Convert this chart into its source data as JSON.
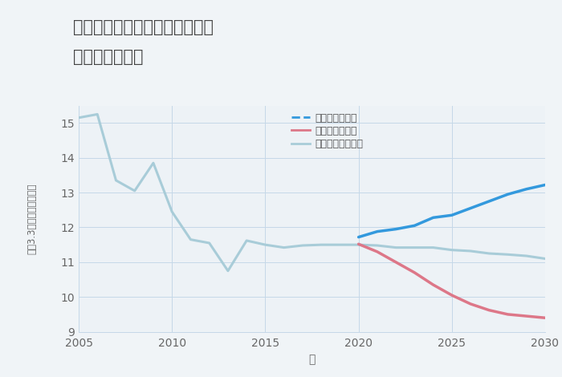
{
  "title_line1": "三重県桑名市長島町十日外面の",
  "title_line2": "土地の価格推移",
  "xlabel": "年",
  "ylabel_chars": [
    "坪",
    "（",
    "3",
    ".",
    "3",
    "㎡",
    "）",
    "単",
    "価",
    "（",
    "万",
    "円",
    "）"
  ],
  "ylim": [
    9,
    15.5
  ],
  "xlim": [
    2005,
    2030
  ],
  "background_color": "#f0f4f7",
  "plot_background": "#edf2f6",
  "grid_color": "#c5d8e8",
  "normal_scenario": {
    "label": "ノーマルシナリオ",
    "color": "#a8ccd8",
    "linewidth": 2.2,
    "x": [
      2005,
      2006,
      2007,
      2008,
      2009,
      2010,
      2011,
      2012,
      2013,
      2014,
      2015,
      2016,
      2017,
      2018,
      2019,
      2020,
      2021,
      2022,
      2023,
      2024,
      2025,
      2026,
      2027,
      2028,
      2029,
      2030
    ],
    "y": [
      15.15,
      15.25,
      13.35,
      13.05,
      13.85,
      12.45,
      11.65,
      11.55,
      10.75,
      11.62,
      11.5,
      11.42,
      11.48,
      11.5,
      11.5,
      11.5,
      11.48,
      11.42,
      11.42,
      11.42,
      11.35,
      11.32,
      11.25,
      11.22,
      11.18,
      11.1
    ]
  },
  "good_scenario": {
    "label": "グッドシナリオ",
    "color": "#3399dd",
    "linewidth": 2.5,
    "x": [
      2020,
      2021,
      2022,
      2023,
      2024,
      2025,
      2026,
      2027,
      2028,
      2029,
      2030
    ],
    "y": [
      11.72,
      11.88,
      11.95,
      12.05,
      12.28,
      12.35,
      12.55,
      12.75,
      12.95,
      13.1,
      13.22
    ]
  },
  "bad_scenario": {
    "label": "バッドシナリオ",
    "color": "#dd7788",
    "linewidth": 2.5,
    "x": [
      2020,
      2021,
      2022,
      2023,
      2024,
      2025,
      2026,
      2027,
      2028,
      2029,
      2030
    ],
    "y": [
      11.52,
      11.3,
      11.0,
      10.7,
      10.35,
      10.05,
      9.8,
      9.62,
      9.5,
      9.45,
      9.4
    ]
  },
  "yticks": [
    9,
    10,
    11,
    12,
    13,
    14,
    15
  ],
  "xticks": [
    2005,
    2010,
    2015,
    2020,
    2025,
    2030
  ],
  "title_fontsize": 15,
  "tick_fontsize": 10,
  "label_fontsize": 10
}
